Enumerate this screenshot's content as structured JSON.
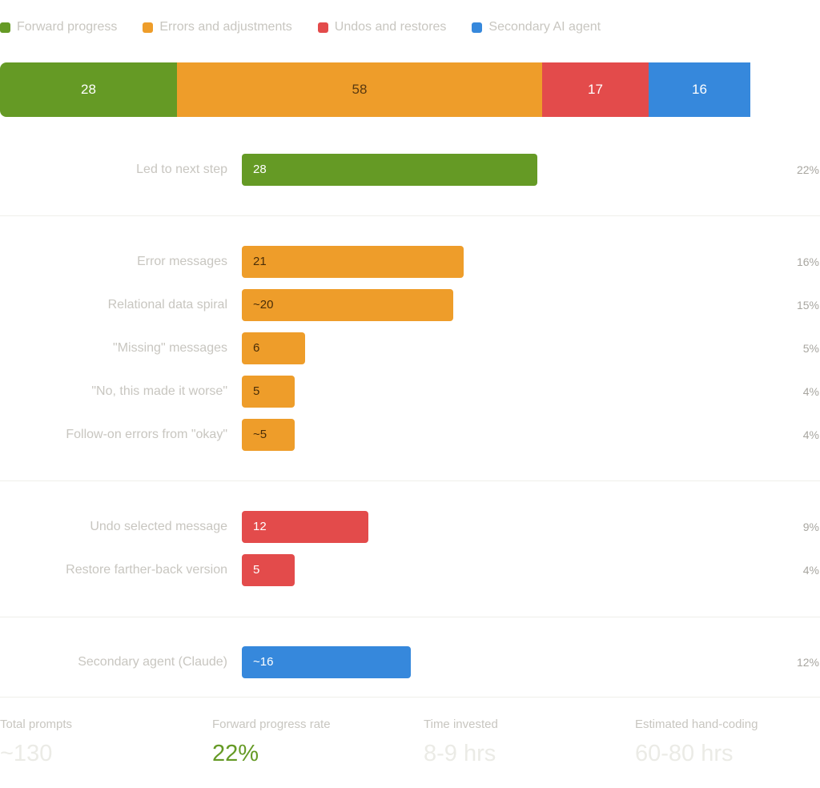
{
  "chart_data": {
    "type": "bar",
    "title": "",
    "xlabel": "",
    "ylabel": "",
    "legend": {
      "placement": "top-left",
      "entries": [
        {
          "name": "Forward progress",
          "color": "#659a25"
        },
        {
          "name": "Errors and adjustments",
          "color": "#ee9d2a"
        },
        {
          "name": "Undos and restores",
          "color": "#e34b4b"
        },
        {
          "name": "Secondary AI agent",
          "color": "#3688dc"
        }
      ]
    },
    "stacked_summary": {
      "type": "stacked-bar",
      "segments": [
        {
          "name": "Forward progress",
          "value": 28,
          "label": "28",
          "color": "#659a25",
          "text_color": "#ffffff"
        },
        {
          "name": "Errors and adjustments",
          "value": 58,
          "label": "58",
          "color": "#ee9d2a",
          "text_color": "#5a3a10"
        },
        {
          "name": "Undos and restores",
          "value": 17,
          "label": "17",
          "color": "#e34b4b",
          "text_color": "#ffffff"
        },
        {
          "name": "Secondary AI agent",
          "value": 16,
          "label": "16",
          "color": "#3688dc",
          "text_color": "#ffffff"
        }
      ]
    },
    "xlim": [
      0,
      28
    ],
    "groups": [
      {
        "name": "Forward progress",
        "color": "#659a25",
        "text_color": "#ffffff",
        "rows": [
          {
            "label": "Led to next step",
            "value": 28,
            "value_label": "28",
            "percent": "22%"
          }
        ]
      },
      {
        "name": "Errors and adjustments",
        "color": "#ee9d2a",
        "text_color": "#4a2e08",
        "rows": [
          {
            "label": "Error messages",
            "value": 21,
            "value_label": "21",
            "percent": "16%"
          },
          {
            "label": "Relational data spiral",
            "value": 20,
            "value_label": "~20",
            "percent": "15%"
          },
          {
            "label": "\"Missing\" messages",
            "value": 6,
            "value_label": "6",
            "percent": "5%"
          },
          {
            "label": "\"No, this made it worse\"",
            "value": 5,
            "value_label": "5",
            "percent": "4%"
          },
          {
            "label": "Follow-on errors from \"okay\"",
            "value": 5,
            "value_label": "~5",
            "percent": "4%"
          }
        ]
      },
      {
        "name": "Undos and restores",
        "color": "#e34b4b",
        "text_color": "#ffffff",
        "rows": [
          {
            "label": "Undo selected message",
            "value": 12,
            "value_label": "12",
            "percent": "9%"
          },
          {
            "label": "Restore farther-back version",
            "value": 5,
            "value_label": "5",
            "percent": "4%"
          }
        ]
      },
      {
        "name": "Secondary AI agent",
        "color": "#3688dc",
        "text_color": "#ffffff",
        "rows": [
          {
            "label": "Secondary agent (Claude)",
            "value": 16,
            "value_label": "~16",
            "percent": "12%"
          }
        ]
      }
    ]
  },
  "stats": [
    {
      "label": "Total prompts",
      "value": "~130",
      "color": "#ebebe6"
    },
    {
      "label": "Forward progress rate",
      "value": "22%",
      "color": "#659a25"
    },
    {
      "label": "Time invested",
      "value": "8-9 hrs",
      "color": "#ebebe6"
    },
    {
      "label": "Estimated hand-coding",
      "value": "60-80 hrs",
      "color": "#ebebe6"
    }
  ]
}
